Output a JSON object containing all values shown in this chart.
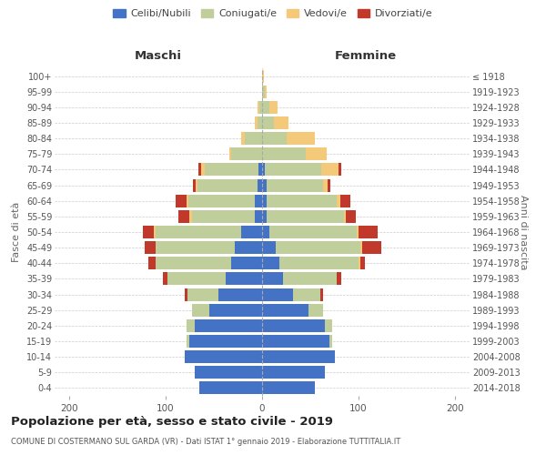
{
  "age_groups": [
    "0-4",
    "5-9",
    "10-14",
    "15-19",
    "20-24",
    "25-29",
    "30-34",
    "35-39",
    "40-44",
    "45-49",
    "50-54",
    "55-59",
    "60-64",
    "65-69",
    "70-74",
    "75-79",
    "80-84",
    "85-89",
    "90-94",
    "95-99",
    "100+"
  ],
  "birth_years": [
    "2014-2018",
    "2009-2013",
    "2004-2008",
    "1999-2003",
    "1994-1998",
    "1989-1993",
    "1984-1988",
    "1979-1983",
    "1974-1978",
    "1969-1973",
    "1964-1968",
    "1959-1963",
    "1954-1958",
    "1949-1953",
    "1944-1948",
    "1939-1943",
    "1934-1938",
    "1929-1933",
    "1924-1928",
    "1919-1923",
    "≤ 1918"
  ],
  "colors": {
    "celibi": "#4472C4",
    "coniugati": "#BFCE9B",
    "vedovi": "#F5C97A",
    "divorziati": "#C0392B",
    "background": "#FFFFFF",
    "grid": "#CCCCCC"
  },
  "maschi": {
    "celibi": [
      65,
      70,
      80,
      75,
      70,
      55,
      45,
      38,
      32,
      28,
      22,
      8,
      8,
      5,
      4,
      0,
      0,
      0,
      0,
      0,
      0
    ],
    "coniugati": [
      0,
      0,
      0,
      3,
      8,
      18,
      32,
      60,
      78,
      82,
      88,
      65,
      68,
      62,
      55,
      32,
      18,
      5,
      3,
      0,
      0
    ],
    "vedovi": [
      0,
      0,
      0,
      0,
      0,
      0,
      0,
      0,
      0,
      0,
      2,
      2,
      2,
      2,
      4,
      2,
      4,
      3,
      2,
      0,
      0
    ],
    "divorziati": [
      0,
      0,
      0,
      0,
      0,
      0,
      3,
      5,
      8,
      12,
      12,
      12,
      12,
      3,
      3,
      0,
      0,
      0,
      0,
      0,
      0
    ]
  },
  "femmine": {
    "celibi": [
      55,
      65,
      75,
      70,
      65,
      48,
      32,
      22,
      18,
      14,
      8,
      5,
      5,
      5,
      3,
      0,
      0,
      0,
      0,
      0,
      0
    ],
    "coniugati": [
      0,
      0,
      0,
      3,
      8,
      15,
      28,
      55,
      82,
      88,
      90,
      80,
      72,
      58,
      58,
      45,
      25,
      12,
      8,
      3,
      0
    ],
    "vedovi": [
      0,
      0,
      0,
      0,
      0,
      0,
      0,
      0,
      2,
      2,
      2,
      2,
      4,
      5,
      18,
      22,
      30,
      15,
      8,
      2,
      2
    ],
    "divorziati": [
      0,
      0,
      0,
      0,
      0,
      0,
      3,
      5,
      5,
      20,
      20,
      10,
      10,
      3,
      3,
      0,
      0,
      0,
      0,
      0,
      0
    ]
  },
  "xlim": 215,
  "xticks": [
    -200,
    -100,
    0,
    100,
    200
  ],
  "xtick_labels": [
    "200",
    "100",
    "0",
    "100",
    "200"
  ],
  "title": "Popolazione per età, sesso e stato civile - 2019",
  "subtitle": "COMUNE DI COSTERMANO SUL GARDA (VR) - Dati ISTAT 1° gennaio 2019 - Elaborazione TUTTITALIA.IT",
  "legend_labels": [
    "Celibi/Nubili",
    "Coniugati/e",
    "Vedovi/e",
    "Divorziati/e"
  ],
  "y_label_left": "Fasce di età",
  "y_label_right": "Anni di nascita",
  "maschi_label": "Maschi",
  "femmine_label": "Femmine"
}
